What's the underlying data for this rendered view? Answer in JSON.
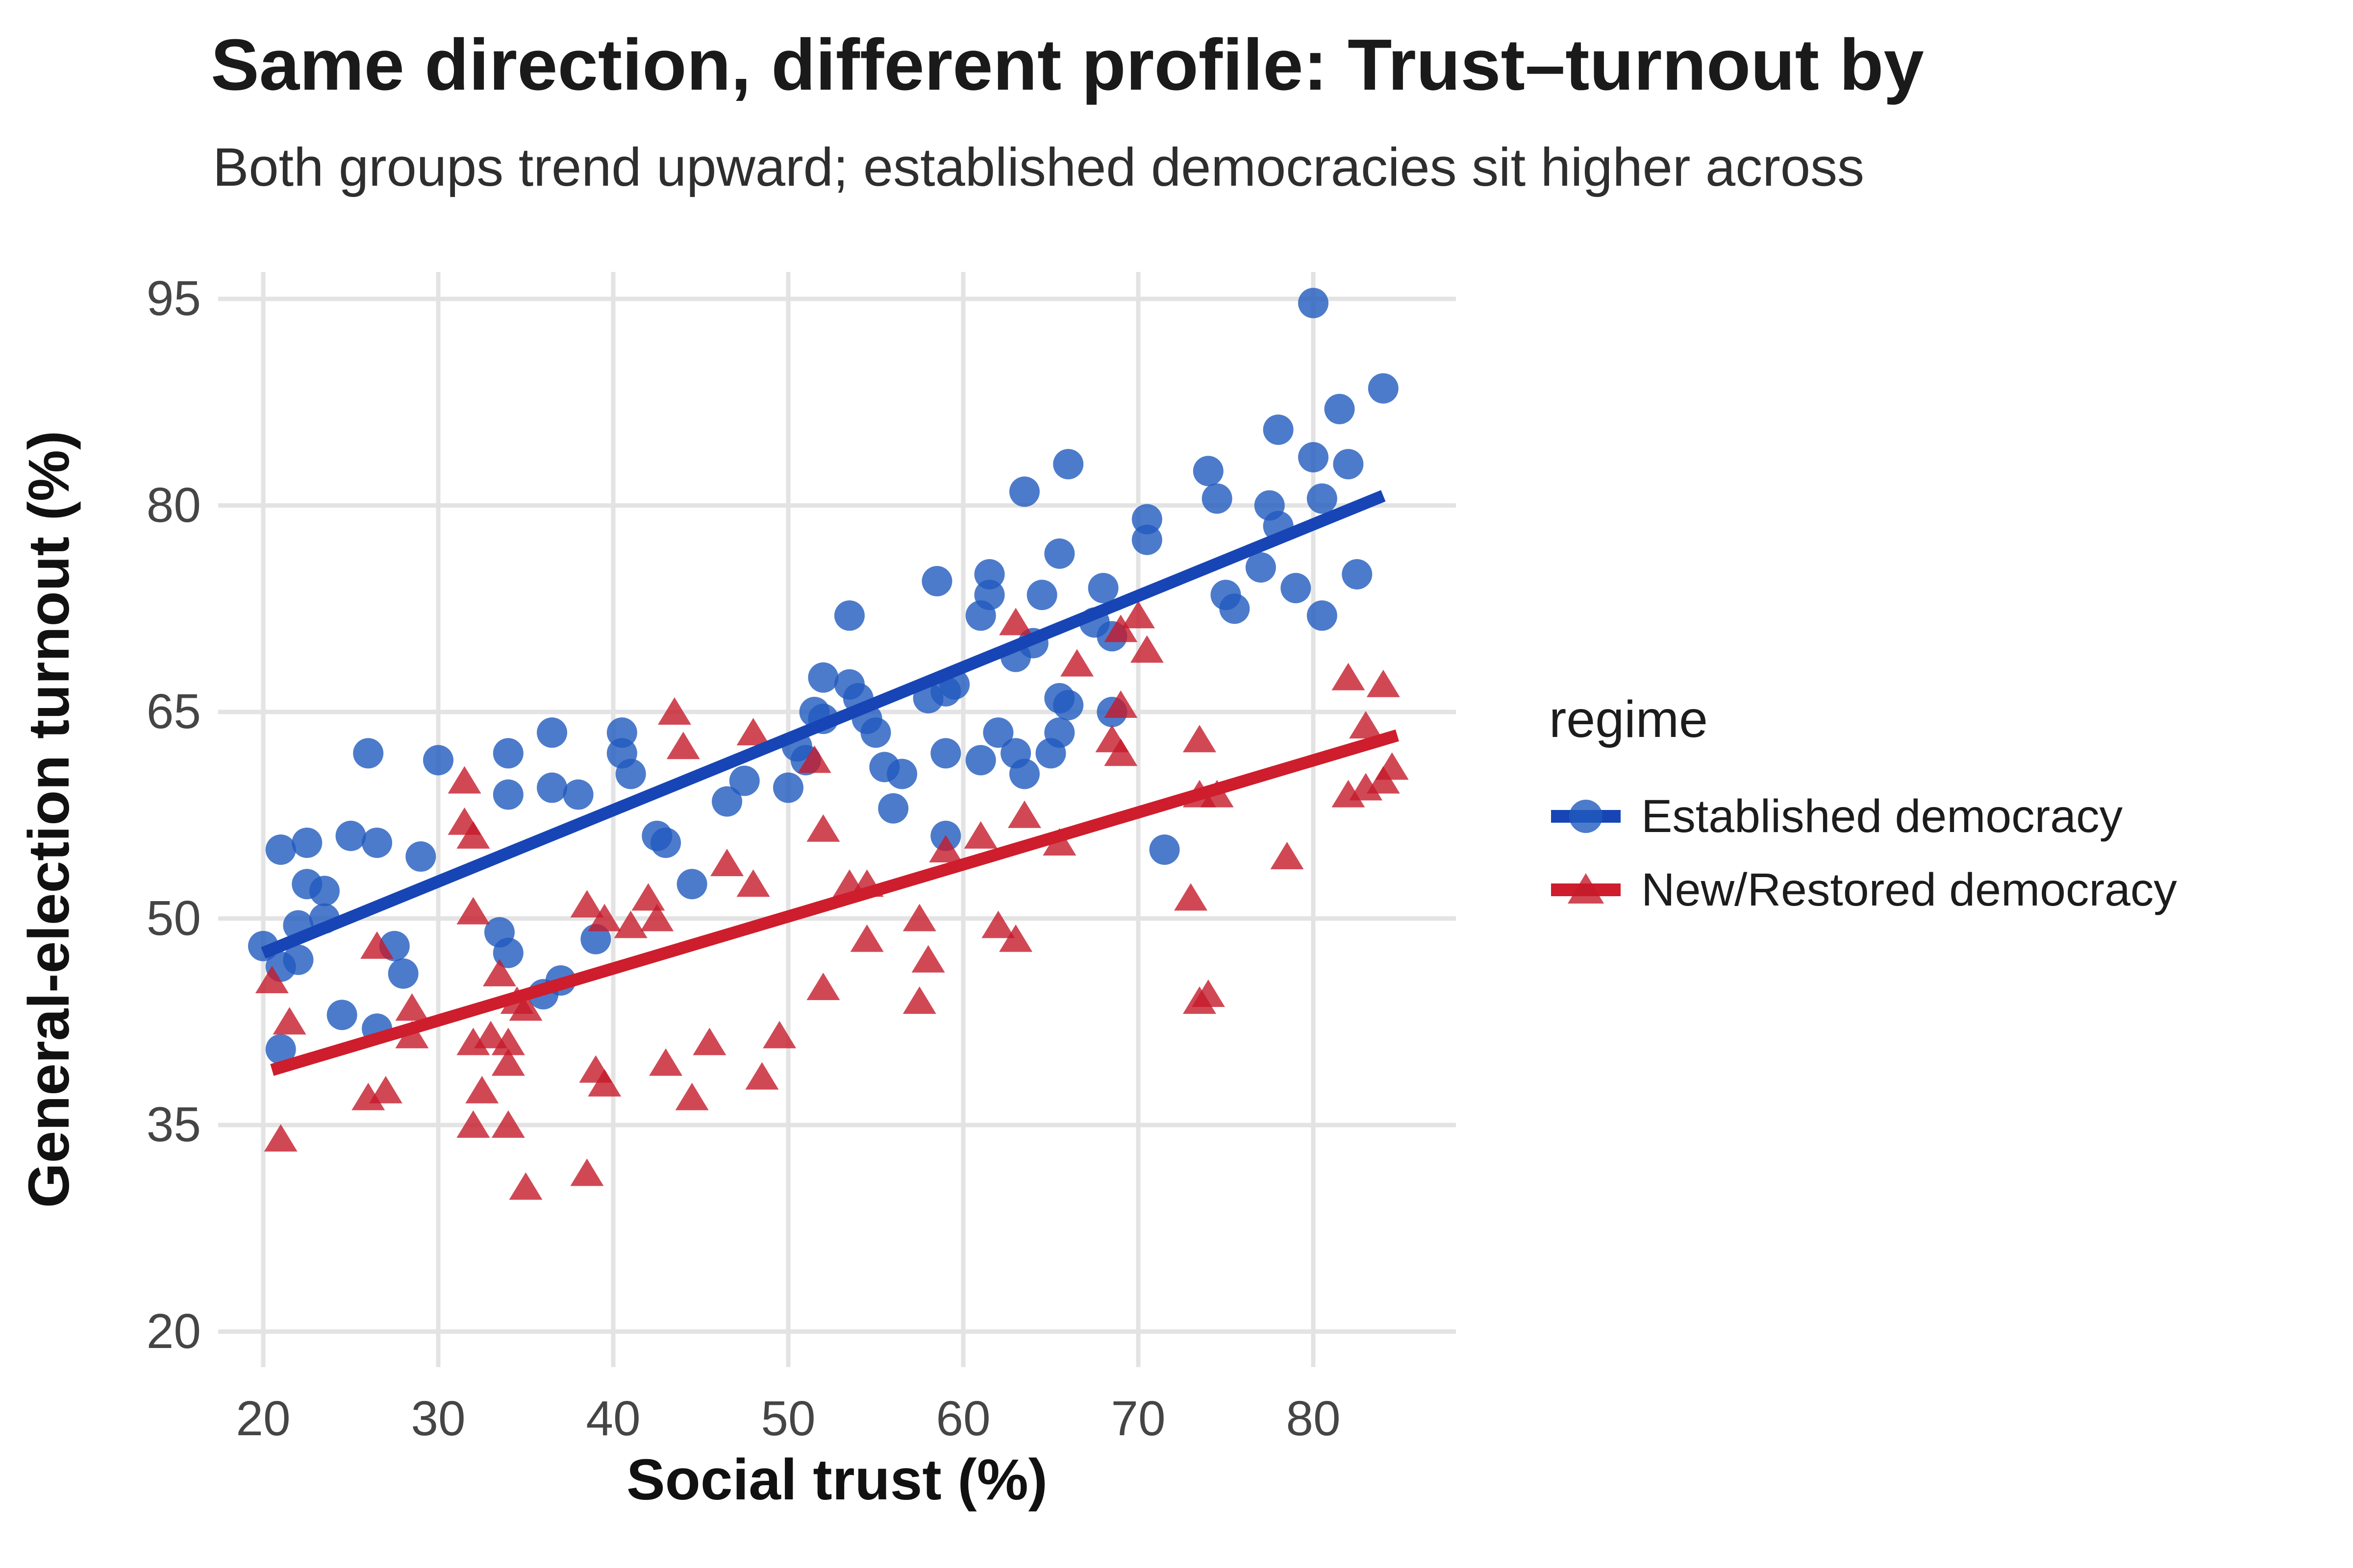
{
  "chart_data": {
    "type": "scatter",
    "title": "Same direction, different profile: Trust–turnout by",
    "subtitle": "Both groups trend upward; established democracies sit higher across",
    "xlabel": "Social trust (%)",
    "ylabel": "General-election turnout (%)",
    "x_ticks": [
      20,
      30,
      40,
      50,
      60,
      70,
      80
    ],
    "y_ticks": [
      20,
      35,
      50,
      65,
      80,
      95
    ],
    "xlim": [
      17.5,
      88.4
    ],
    "ylim": [
      17.4,
      96.9
    ],
    "grid": "major",
    "gridline_color": "#e3e3e3",
    "background": "#ffffff",
    "legend_position": "right-middle",
    "legend_title": "regime",
    "series": [
      {
        "name": "Established democracy",
        "marker": "circle",
        "point_color": "#215abe",
        "point_opacity": 0.8,
        "line_color": "#1745b5",
        "trend": {
          "x": [
            20,
            84
          ],
          "y": [
            47.5,
            80.7
          ]
        },
        "points": [
          [
            26,
            62
          ],
          [
            30,
            61.5
          ],
          [
            34,
            62
          ],
          [
            36.5,
            63.5
          ],
          [
            34,
            59
          ],
          [
            36.5,
            59.5
          ],
          [
            38,
            59
          ],
          [
            25,
            56
          ],
          [
            26.5,
            55.5
          ],
          [
            21,
            55
          ],
          [
            22.5,
            55.5
          ],
          [
            29,
            54.5
          ],
          [
            22.5,
            52.5
          ],
          [
            23.5,
            52
          ],
          [
            23.5,
            50
          ],
          [
            22,
            49.5
          ],
          [
            20,
            48
          ],
          [
            21,
            46.5
          ],
          [
            22,
            47
          ],
          [
            27.5,
            48
          ],
          [
            28,
            46
          ],
          [
            33.5,
            49
          ],
          [
            34,
            47.5
          ],
          [
            36,
            44.5
          ],
          [
            24.5,
            43
          ],
          [
            26.5,
            42
          ],
          [
            37,
            45.5
          ],
          [
            39,
            48.5
          ],
          [
            21,
            40.5
          ],
          [
            40.5,
            63.5
          ],
          [
            40.5,
            62
          ],
          [
            41,
            60.5
          ],
          [
            43,
            55.5
          ],
          [
            42.5,
            56
          ],
          [
            44.5,
            52.5
          ],
          [
            46.5,
            58.5
          ],
          [
            47.5,
            60
          ],
          [
            50,
            59.5
          ],
          [
            52,
            67.5
          ],
          [
            53.5,
            67
          ],
          [
            54,
            66
          ],
          [
            51.5,
            65
          ],
          [
            52,
            64.5
          ],
          [
            50.5,
            62.5
          ],
          [
            51,
            61.5
          ],
          [
            54.5,
            64.5
          ],
          [
            55,
            63.5
          ],
          [
            58,
            66
          ],
          [
            59,
            66.5
          ],
          [
            59.5,
            67
          ],
          [
            55.5,
            61
          ],
          [
            56.5,
            60.5
          ],
          [
            56,
            58
          ],
          [
            59,
            56
          ],
          [
            59,
            62
          ],
          [
            61,
            61.5
          ],
          [
            62,
            63.5
          ],
          [
            63,
            62
          ],
          [
            65,
            62
          ],
          [
            63.5,
            60.5
          ],
          [
            71.5,
            55
          ],
          [
            53.5,
            72
          ],
          [
            80,
            94.7
          ],
          [
            84,
            88.5
          ],
          [
            81.5,
            87
          ],
          [
            78,
            85.5
          ],
          [
            66,
            83
          ],
          [
            63.5,
            81
          ],
          [
            74,
            82.5
          ],
          [
            74.5,
            80.5
          ],
          [
            80,
            83.5
          ],
          [
            82,
            83
          ],
          [
            77.5,
            80
          ],
          [
            78,
            78.5
          ],
          [
            80.5,
            80.5
          ],
          [
            70.5,
            79
          ],
          [
            70.5,
            77.5
          ],
          [
            65.5,
            76.5
          ],
          [
            68,
            74
          ],
          [
            61.5,
            75
          ],
          [
            58.5,
            74.5
          ],
          [
            61.5,
            73.5
          ],
          [
            61,
            72
          ],
          [
            64.5,
            73.5
          ],
          [
            75,
            73.5
          ],
          [
            75.5,
            72.5
          ],
          [
            77,
            75.5
          ],
          [
            79,
            74
          ],
          [
            82.5,
            75
          ],
          [
            80.5,
            72
          ],
          [
            64,
            70
          ],
          [
            63,
            69
          ],
          [
            67.5,
            71.5
          ],
          [
            68.5,
            70.5
          ],
          [
            65.5,
            66
          ],
          [
            68.5,
            65
          ],
          [
            66,
            65.5
          ],
          [
            65.5,
            63.5
          ]
        ]
      },
      {
        "name": "New/Restored democracy",
        "marker": "triangle",
        "point_color": "#c51a2a",
        "point_opacity": 0.8,
        "line_color": "#ce1d2c",
        "trend": {
          "x": [
            20.5,
            84.8
          ],
          "y": [
            39,
            63.3
          ]
        },
        "points": [
          [
            31.5,
            60
          ],
          [
            31.5,
            57
          ],
          [
            32,
            56
          ],
          [
            20.5,
            45.5
          ],
          [
            26.5,
            48
          ],
          [
            28.5,
            43.5
          ],
          [
            33.5,
            46
          ],
          [
            34.5,
            44
          ],
          [
            35,
            43.5
          ],
          [
            38.5,
            51
          ],
          [
            39.5,
            50
          ],
          [
            41,
            49.5
          ],
          [
            21.5,
            42.5
          ],
          [
            32,
            50.5
          ],
          [
            43.5,
            65
          ],
          [
            44,
            62.5
          ],
          [
            48,
            63.5
          ],
          [
            51.5,
            61.5
          ],
          [
            52,
            56.5
          ],
          [
            46.5,
            54
          ],
          [
            48,
            52.5
          ],
          [
            53.5,
            52.5
          ],
          [
            54.5,
            52.5
          ],
          [
            54.5,
            48.5
          ],
          [
            57.5,
            50
          ],
          [
            58,
            47
          ],
          [
            59,
            55
          ],
          [
            61,
            56
          ],
          [
            63.5,
            57.5
          ],
          [
            62,
            49.5
          ],
          [
            63,
            48.5
          ],
          [
            52,
            45
          ],
          [
            57.5,
            44
          ],
          [
            42,
            51.5
          ],
          [
            42.5,
            50
          ],
          [
            66.5,
            68.5
          ],
          [
            70,
            72
          ],
          [
            69,
            71
          ],
          [
            70.5,
            69.5
          ],
          [
            69,
            65.5
          ],
          [
            68.5,
            63
          ],
          [
            69,
            62
          ],
          [
            73.5,
            63
          ],
          [
            73.5,
            59
          ],
          [
            74.5,
            59
          ],
          [
            82,
            67.5
          ],
          [
            84,
            67
          ],
          [
            83,
            64
          ],
          [
            84.5,
            61
          ],
          [
            82,
            59
          ],
          [
            83,
            59.5
          ],
          [
            84,
            60
          ],
          [
            78.5,
            54.5
          ],
          [
            73,
            51.5
          ],
          [
            74,
            44.5
          ],
          [
            73.5,
            44
          ],
          [
            65.5,
            55.5
          ],
          [
            63,
            71.5
          ],
          [
            26,
            37
          ],
          [
            27,
            37.5
          ],
          [
            21,
            34
          ],
          [
            28.5,
            41.5
          ],
          [
            32,
            41
          ],
          [
            33,
            41.5
          ],
          [
            34,
            41
          ],
          [
            32.5,
            37.5
          ],
          [
            34,
            39.5
          ],
          [
            32,
            35
          ],
          [
            34,
            35
          ],
          [
            35,
            30.5
          ],
          [
            38.5,
            31.5
          ],
          [
            39,
            39
          ],
          [
            39.5,
            38
          ],
          [
            43,
            39.5
          ],
          [
            45.5,
            41
          ],
          [
            44.5,
            37
          ],
          [
            48.5,
            38.5
          ],
          [
            49.5,
            41.5
          ]
        ]
      }
    ]
  },
  "colors": {
    "grid": "#e3e3e3",
    "tick_text": "#454545",
    "title_text": "#1a1a1a",
    "subtitle_text": "#2e2e2e"
  }
}
